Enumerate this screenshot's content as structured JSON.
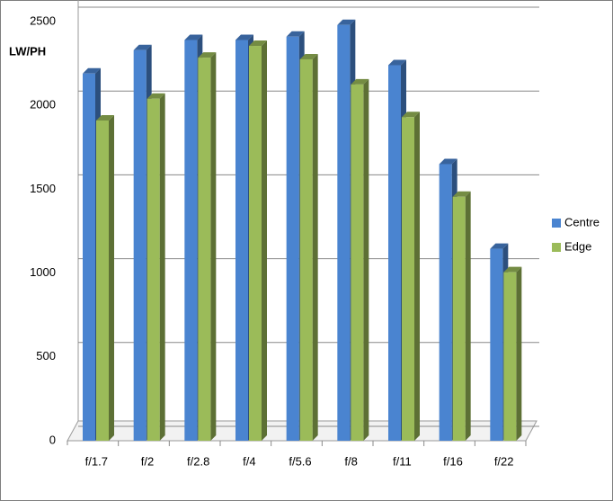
{
  "chart_data": {
    "type": "bar3d",
    "y_label": "LW/PH",
    "categories": [
      "f/1.7",
      "f/2",
      "f/2.8",
      "f/4",
      "f/5.6",
      "f/8",
      "f/11",
      "f/16",
      "f/22"
    ],
    "series": [
      {
        "name": "Centre",
        "color": "#4a84d0",
        "values": [
          2190,
          2330,
          2390,
          2390,
          2410,
          2480,
          2240,
          1650,
          1145
        ]
      },
      {
        "name": "Edge",
        "color": "#9bbb59",
        "values": [
          1910,
          2040,
          2285,
          2355,
          2275,
          2125,
          1930,
          1455,
          1005
        ]
      }
    ],
    "ylim": [
      0,
      2500
    ],
    "yticks": [
      0,
      500,
      1000,
      1500,
      2000,
      2500
    ],
    "grid": true,
    "legend": "right"
  }
}
